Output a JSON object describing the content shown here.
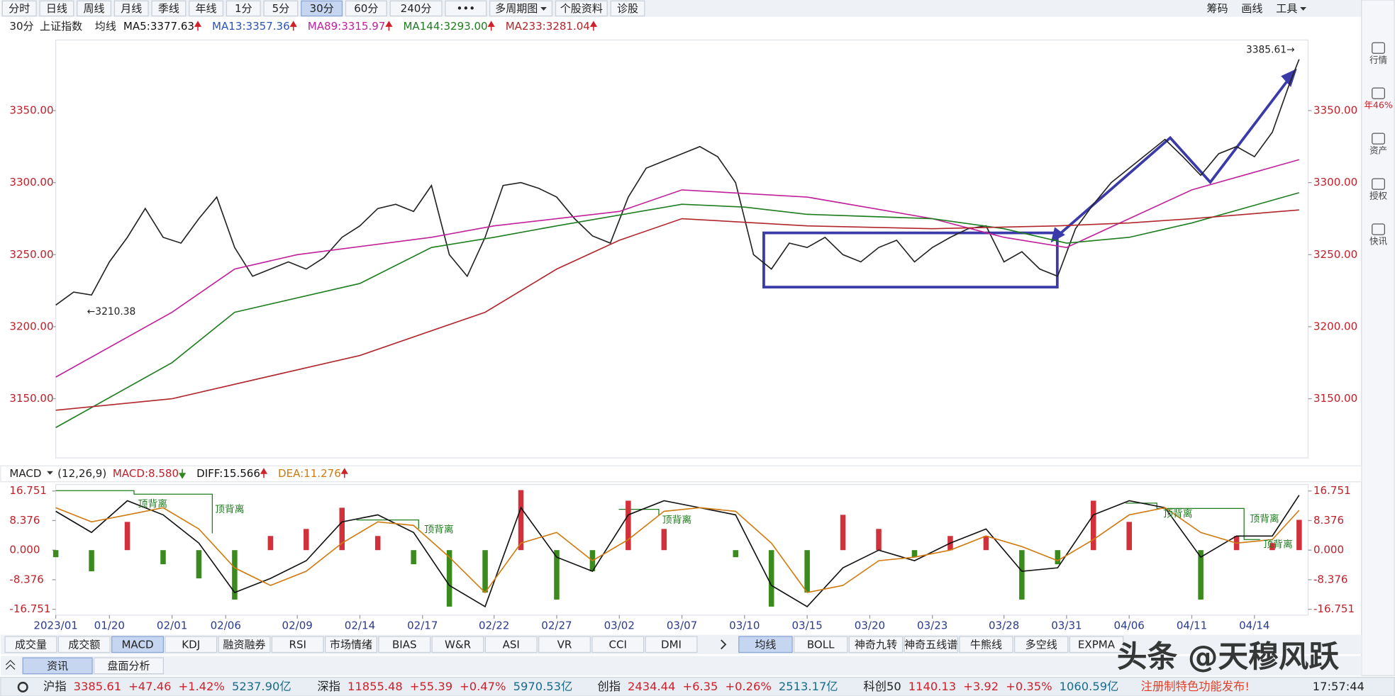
{
  "toolbar": {
    "buttons": [
      "分时",
      "日线",
      "周线",
      "月线",
      "季线",
      "年线",
      "1分",
      "5分",
      "30分",
      "60分",
      "240分",
      "•••",
      "多周期图",
      "个股资料",
      "诊股"
    ],
    "active_index": 8,
    "right": [
      "筹码",
      "画线",
      "工具"
    ]
  },
  "ma_header": {
    "period": "30分",
    "name": "上证指数",
    "label": "均线",
    "items": [
      {
        "text": "MA5:3377.63",
        "color": "#111111",
        "trend": "up"
      },
      {
        "text": "MA13:3357.36",
        "color": "#2a52be",
        "trend": "up"
      },
      {
        "text": "MA89:3315.97",
        "color": "#c0219a",
        "trend": "up"
      },
      {
        "text": "MA144:3293.00",
        "color": "#1e7d1e",
        "trend": "up"
      },
      {
        "text": "MA233:3281.04",
        "color": "#b0262c",
        "trend": "up"
      }
    ]
  },
  "macd_header": {
    "name": "MACD",
    "params": "(12,26,9)",
    "items": [
      {
        "text": "MACD:8.580",
        "color": "#c0202a",
        "trend": "down"
      },
      {
        "text": "DIFF:15.566",
        "color": "#111111",
        "trend": "up"
      },
      {
        "text": "DEA:11.276",
        "color": "#d07a10",
        "trend": "up"
      }
    ]
  },
  "chart_data": [
    {
      "type": "line",
      "xlim": [
        0,
        140
      ],
      "ylim": [
        3109,
        3399
      ],
      "yticks": [
        {
          "value": 3150,
          "label": "3150.00"
        },
        {
          "value": 3200,
          "label": "3200.00"
        },
        {
          "value": 3250,
          "label": "3250.00"
        },
        {
          "value": 3300,
          "label": "3300.00"
        },
        {
          "value": 3350,
          "label": "3350.00"
        }
      ],
      "series": [
        {
          "color": "#222222",
          "x": [
            0,
            2,
            4,
            6,
            8,
            10,
            12,
            14,
            16,
            18,
            20,
            22,
            24,
            26,
            28,
            30,
            32,
            34,
            36,
            38,
            40,
            42,
            44,
            46,
            48,
            50,
            52,
            54,
            56,
            58,
            60,
            62,
            64,
            66,
            68,
            70,
            72,
            74,
            76,
            78,
            80,
            82,
            84,
            86,
            88,
            90,
            92,
            94,
            96,
            98,
            100,
            102,
            104,
            106,
            108,
            110,
            112,
            114,
            116,
            118,
            120,
            122,
            124,
            126,
            128,
            130,
            132,
            134,
            136,
            138,
            139
          ],
          "values": [
            3215,
            3224,
            3222,
            3245,
            3262,
            3282,
            3262,
            3258,
            3275,
            3290,
            3255,
            3235,
            3240,
            3245,
            3240,
            3248,
            3262,
            3270,
            3282,
            3285,
            3280,
            3298,
            3250,
            3235,
            3262,
            3298,
            3300,
            3296,
            3290,
            3275,
            3263,
            3258,
            3290,
            3310,
            3315,
            3320,
            3325,
            3318,
            3300,
            3250,
            3240,
            3258,
            3255,
            3262,
            3250,
            3245,
            3255,
            3260,
            3245,
            3255,
            3262,
            3268,
            3270,
            3245,
            3252,
            3240,
            3235,
            3268,
            3285,
            3300,
            3310,
            3320,
            3330,
            3318,
            3305,
            3320,
            3325,
            3318,
            3335,
            3370,
            3385.61
          ]
        },
        {
          "color": "#c0219a",
          "x": [
            0,
            13,
            20,
            27,
            42,
            49,
            63,
            70,
            84,
            98,
            106,
            113,
            120,
            127,
            139
          ],
          "values": [
            3165,
            3210,
            3240,
            3250,
            3262,
            3270,
            3280,
            3295,
            3290,
            3275,
            3262,
            3255,
            3275,
            3295,
            3315.97
          ]
        },
        {
          "color": "#1e7d1e",
          "x": [
            0,
            13,
            20,
            34,
            42,
            49,
            56,
            70,
            77,
            84,
            98,
            106,
            113,
            120,
            127,
            139
          ],
          "values": [
            3130,
            3175,
            3210,
            3230,
            3255,
            3262,
            3270,
            3285,
            3283,
            3278,
            3275,
            3268,
            3258,
            3262,
            3272,
            3293.0
          ]
        },
        {
          "color": "#b0262c",
          "x": [
            0,
            13,
            20,
            34,
            48,
            56,
            63,
            70,
            84,
            98,
            112,
            120,
            127,
            139
          ],
          "values": [
            3142,
            3150,
            3160,
            3180,
            3210,
            3240,
            3260,
            3275,
            3270,
            3268,
            3270,
            3272,
            3275,
            3281.04
          ]
        }
      ],
      "annotations": [
        {
          "text": "←3210.38",
          "x": 3.5,
          "y": 3210.38,
          "anchor": "start"
        },
        {
          "text": "3385.61→",
          "x": 138.5,
          "y": 3392,
          "anchor": "end"
        }
      ]
    },
    {
      "type": "combo",
      "xlim": [
        0,
        140
      ],
      "ylim": [
        -18.4,
        18.6
      ],
      "yticks": [
        -16.751,
        -8.376,
        {
          "value": 0,
          "label": "0.000"
        },
        8.376,
        16.751
      ],
      "xticks": [
        {
          "value": 0,
          "label": "2023/01"
        },
        {
          "value": 6,
          "label": "01/20"
        },
        {
          "value": 13,
          "label": "02/01"
        },
        {
          "value": 19,
          "label": "02/06"
        },
        {
          "value": 27,
          "label": "02/09"
        },
        {
          "value": 34,
          "label": "02/14"
        },
        {
          "value": 41,
          "label": "02/17"
        },
        {
          "value": 49,
          "label": "02/22"
        },
        {
          "value": 56,
          "label": "02/27"
        },
        {
          "value": 63,
          "label": "03/02"
        },
        {
          "value": 70,
          "label": "03/07"
        },
        {
          "value": 77,
          "label": "03/10"
        },
        {
          "value": 84,
          "label": "03/15"
        },
        {
          "value": 91,
          "label": "03/20"
        },
        {
          "value": 98,
          "label": "03/23"
        },
        {
          "value": 106,
          "label": "03/28"
        },
        {
          "value": 113,
          "label": "03/31"
        },
        {
          "value": 120,
          "label": "04/06"
        },
        {
          "value": 127,
          "label": "04/11"
        },
        {
          "value": 134,
          "label": "04/14"
        }
      ],
      "series": [
        {
          "kind": "bar",
          "color_up": "#d0313a",
          "color_down": "#3a8a1e",
          "x": [
            0,
            4,
            8,
            12,
            16,
            20,
            24,
            28,
            32,
            36,
            40,
            44,
            48,
            52,
            56,
            60,
            64,
            68,
            72,
            76,
            80,
            84,
            88,
            92,
            96,
            100,
            104,
            108,
            112,
            116,
            120,
            124,
            128,
            132,
            136,
            139
          ],
          "values": [
            -2,
            -6,
            8,
            -4,
            -8,
            -14,
            4,
            6,
            12,
            4,
            -4,
            -16,
            -12,
            17,
            -14,
            -6,
            14,
            6,
            0,
            -2,
            -16,
            -12,
            10,
            6,
            -2,
            4,
            4,
            -14,
            -4,
            14,
            8,
            0,
            -14,
            4,
            2,
            8.58
          ]
        },
        {
          "kind": "line",
          "color": "#111111",
          "x": [
            0,
            4,
            8,
            12,
            16,
            20,
            24,
            28,
            32,
            36,
            40,
            44,
            48,
            52,
            56,
            60,
            64,
            68,
            72,
            76,
            80,
            84,
            88,
            92,
            96,
            100,
            104,
            108,
            112,
            116,
            120,
            124,
            128,
            132,
            136,
            139
          ],
          "values": [
            11,
            5,
            14,
            10,
            2,
            -12,
            -8,
            -3,
            8,
            10,
            5,
            -10,
            -16,
            12,
            -2,
            -6,
            10,
            14,
            12,
            10,
            -10,
            -16,
            -5,
            0,
            -3,
            2,
            6,
            -6,
            -5,
            10,
            14,
            12,
            -2,
            4,
            4,
            15.566
          ]
        },
        {
          "kind": "line",
          "color": "#d07a10",
          "x": [
            0,
            4,
            8,
            12,
            16,
            20,
            24,
            28,
            32,
            36,
            40,
            44,
            48,
            52,
            56,
            60,
            64,
            68,
            72,
            76,
            80,
            84,
            88,
            92,
            96,
            100,
            104,
            108,
            112,
            116,
            120,
            124,
            128,
            132,
            136,
            139
          ],
          "values": [
            12,
            8,
            10,
            12,
            6,
            -5,
            -10,
            -6,
            2,
            8,
            7,
            -2,
            -12,
            2,
            5,
            -3,
            3,
            11,
            12,
            11,
            2,
            -12,
            -10,
            -3,
            -2,
            0,
            4,
            1,
            -3,
            3,
            10,
            12,
            5,
            2,
            3,
            11.276
          ]
        }
      ],
      "annotations": [
        {
          "text": "顶背离",
          "x": 9.2,
          "y": 13
        },
        {
          "text": "顶背离",
          "x": 17.8,
          "y": 11.5
        },
        {
          "text": "顶背离",
          "x": 41.2,
          "y": 5.8
        },
        {
          "text": "顶背离",
          "x": 67.8,
          "y": 8.5
        },
        {
          "text": "顶背离",
          "x": 123.8,
          "y": 10.2
        },
        {
          "text": "顶背离",
          "x": 133.5,
          "y": 8.8
        },
        {
          "text": "顶背离",
          "x": 135,
          "y": 1.5
        }
      ]
    }
  ],
  "indicator_tabs": {
    "left": [
      "成交量",
      "成交额",
      "MACD",
      "KDJ",
      "融资融券",
      "RSI",
      "市场情绪",
      "BIAS",
      "W&R",
      "ASI",
      "VR",
      "CCI",
      "DMI"
    ],
    "left_active": 2,
    "right": [
      "均线",
      "BOLL",
      "神奇九转",
      "神奇五线谱",
      "牛熊线",
      "多空线",
      "EXPMA"
    ],
    "right_active": 0
  },
  "info_tabs": {
    "tabs": [
      "资讯",
      "盘面分析"
    ],
    "active": 0
  },
  "status_bar": {
    "indices": [
      {
        "name": "沪指",
        "values": [
          "3385.61",
          "+47.46",
          "+1.42%",
          "5237.90亿"
        ]
      },
      {
        "name": "深指",
        "values": [
          "11855.48",
          "+55.39",
          "+0.47%",
          "5970.53亿"
        ]
      },
      {
        "name": "创指",
        "values": [
          "2434.44",
          "+6.35",
          "+0.26%",
          "2513.17亿"
        ]
      },
      {
        "name": "科创50",
        "values": [
          "1140.13",
          "+3.92",
          "+0.35%",
          "1060.59亿"
        ]
      }
    ],
    "notice": "注册制特色功能发布!",
    "time": "17:57:44"
  },
  "sidebar": [
    "行情",
    "年46%",
    "资产",
    "授权",
    "快讯"
  ],
  "watermark": "头条 @天穆风跃"
}
